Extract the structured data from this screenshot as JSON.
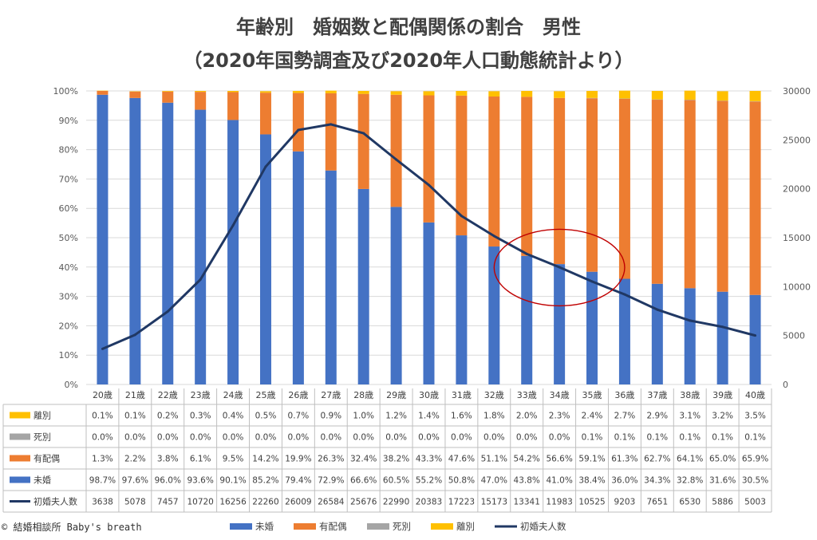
{
  "chart_data": {
    "type": "bar",
    "title": "年齢別　婚姻数と配偶関係の割合　男性",
    "subtitle": "（2020年国勢調査及び2020年人口動態統計より）",
    "categories": [
      "20歳",
      "21歳",
      "22歳",
      "23歳",
      "24歳",
      "25歳",
      "26歳",
      "27歳",
      "28歳",
      "29歳",
      "30歳",
      "31歳",
      "32歳",
      "33歳",
      "34歳",
      "35歳",
      "36歳",
      "37歳",
      "38歳",
      "39歳",
      "40歳"
    ],
    "y_left": {
      "ylim": [
        0,
        100
      ],
      "ticks": [
        "0%",
        "10%",
        "20%",
        "30%",
        "40%",
        "50%",
        "60%",
        "70%",
        "80%",
        "90%",
        "100%"
      ]
    },
    "y_right": {
      "ylim": [
        0,
        30000
      ],
      "ticks": [
        "0",
        "5000",
        "10000",
        "15000",
        "20000",
        "25000",
        "30000"
      ]
    },
    "series": [
      {
        "name": "未婚",
        "type": "bar",
        "color": "#4472c4",
        "values": [
          98.7,
          97.6,
          96.0,
          93.6,
          90.1,
          85.2,
          79.4,
          72.9,
          66.6,
          60.5,
          55.2,
          50.8,
          47.0,
          43.8,
          41.0,
          38.4,
          36.0,
          34.3,
          32.8,
          31.6,
          30.5
        ],
        "labels": [
          "98.7%",
          "97.6%",
          "96.0%",
          "93.6%",
          "90.1%",
          "85.2%",
          "79.4%",
          "72.9%",
          "66.6%",
          "60.5%",
          "55.2%",
          "50.8%",
          "47.0%",
          "43.8%",
          "41.0%",
          "38.4%",
          "36.0%",
          "34.3%",
          "32.8%",
          "31.6%",
          "30.5%"
        ]
      },
      {
        "name": "有配偶",
        "type": "bar",
        "color": "#ed7d31",
        "values": [
          1.3,
          2.2,
          3.8,
          6.1,
          9.5,
          14.2,
          19.9,
          26.3,
          32.4,
          38.2,
          43.3,
          47.6,
          51.1,
          54.2,
          56.6,
          59.1,
          61.3,
          62.7,
          64.1,
          65.0,
          65.9
        ],
        "labels": [
          "1.3%",
          "2.2%",
          "3.8%",
          "6.1%",
          "9.5%",
          "14.2%",
          "19.9%",
          "26.3%",
          "32.4%",
          "38.2%",
          "43.3%",
          "47.6%",
          "51.1%",
          "54.2%",
          "56.6%",
          "59.1%",
          "61.3%",
          "62.7%",
          "64.1%",
          "65.0%",
          "65.9%"
        ]
      },
      {
        "name": "死別",
        "type": "bar",
        "color": "#a5a5a5",
        "values": [
          0.0,
          0.0,
          0.0,
          0.0,
          0.0,
          0.0,
          0.0,
          0.0,
          0.0,
          0.0,
          0.0,
          0.0,
          0.0,
          0.0,
          0.0,
          0.1,
          0.1,
          0.1,
          0.1,
          0.1,
          0.1
        ],
        "labels": [
          "0.0%",
          "0.0%",
          "0.0%",
          "0.0%",
          "0.0%",
          "0.0%",
          "0.0%",
          "0.0%",
          "0.0%",
          "0.0%",
          "0.0%",
          "0.0%",
          "0.0%",
          "0.0%",
          "0.0%",
          "0.1%",
          "0.1%",
          "0.1%",
          "0.1%",
          "0.1%",
          "0.1%"
        ]
      },
      {
        "name": "離別",
        "type": "bar",
        "color": "#ffc000",
        "values": [
          0.1,
          0.1,
          0.2,
          0.3,
          0.4,
          0.5,
          0.7,
          0.9,
          1.0,
          1.2,
          1.4,
          1.6,
          1.8,
          2.0,
          2.3,
          2.4,
          2.7,
          2.9,
          3.1,
          3.2,
          3.5
        ],
        "labels": [
          "0.1%",
          "0.1%",
          "0.2%",
          "0.3%",
          "0.4%",
          "0.5%",
          "0.7%",
          "0.9%",
          "1.0%",
          "1.2%",
          "1.4%",
          "1.6%",
          "1.8%",
          "2.0%",
          "2.3%",
          "2.4%",
          "2.7%",
          "2.9%",
          "3.1%",
          "3.2%",
          "3.5%"
        ]
      },
      {
        "name": "初婚夫人数",
        "type": "line",
        "axis": "right",
        "color": "#203864",
        "values": [
          3638,
          5078,
          7457,
          10720,
          16256,
          22260,
          26009,
          26584,
          25676,
          22990,
          20383,
          17223,
          15173,
          13341,
          11983,
          10525,
          9203,
          7651,
          6530,
          5886,
          5003
        ],
        "labels": [
          "3638",
          "5078",
          "7457",
          "10720",
          "16256",
          "22260",
          "26009",
          "26584",
          "25676",
          "22990",
          "20383",
          "17223",
          "15173",
          "13341",
          "11983",
          "10525",
          "9203",
          "7651",
          "6530",
          "5886",
          "5003"
        ]
      }
    ],
    "table_order": [
      "離別",
      "死別",
      "有配偶",
      "未婚",
      "初婚夫人数"
    ],
    "legend": {
      "placement": "bottom",
      "order": [
        "未婚",
        "有配偶",
        "死別",
        "離別",
        "初婚夫人数"
      ]
    },
    "grid": true,
    "annotation": {
      "shape": "ellipse",
      "color": "#c00000",
      "around": [
        "33歳",
        "34歳",
        "35歳"
      ]
    }
  },
  "footer": {
    "copyright": "© 結婚相談所 Baby's breath"
  }
}
